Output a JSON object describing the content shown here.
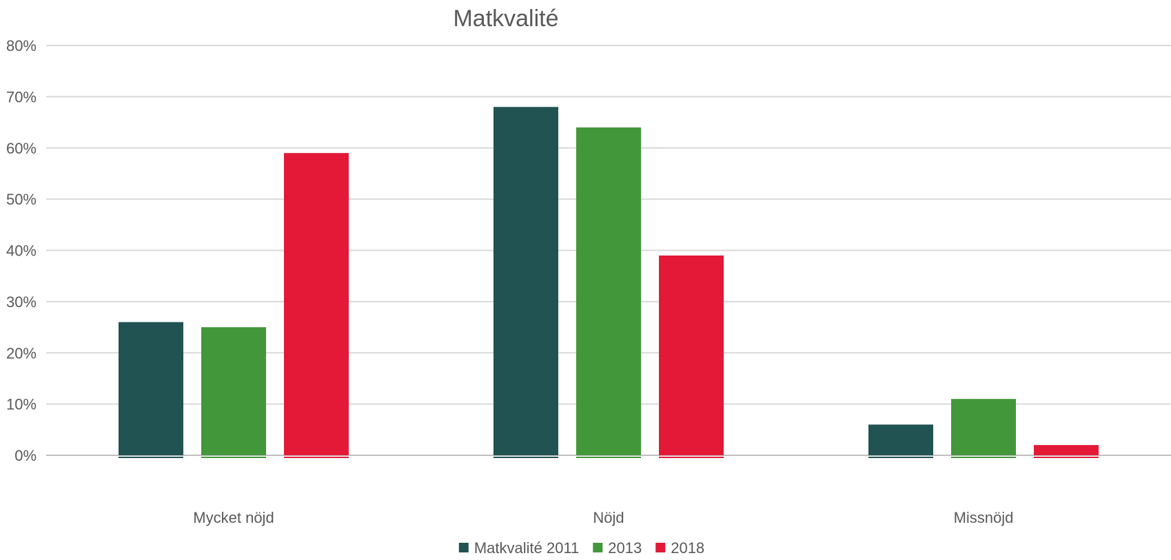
{
  "chart_data": {
    "type": "bar",
    "title": "Matkvalité",
    "xlabel": "",
    "ylabel": "",
    "categories": [
      "Mycket nöjd",
      "Nöjd",
      "Missnöjd"
    ],
    "series": [
      {
        "name": "Matkvalité 2011",
        "color": "#215352",
        "values": [
          26,
          68,
          6
        ]
      },
      {
        "name": "2013",
        "color": "#43973B",
        "values": [
          25,
          64,
          11
        ]
      },
      {
        "name": "2018",
        "color": "#E31937",
        "values": [
          59,
          39,
          2
        ]
      }
    ],
    "ylim": [
      0,
      80
    ],
    "yticks": [
      "0%",
      "10%",
      "20%",
      "30%",
      "40%",
      "50%",
      "60%",
      "70%",
      "80%"
    ],
    "grid": true,
    "legend": "bottom-center"
  }
}
